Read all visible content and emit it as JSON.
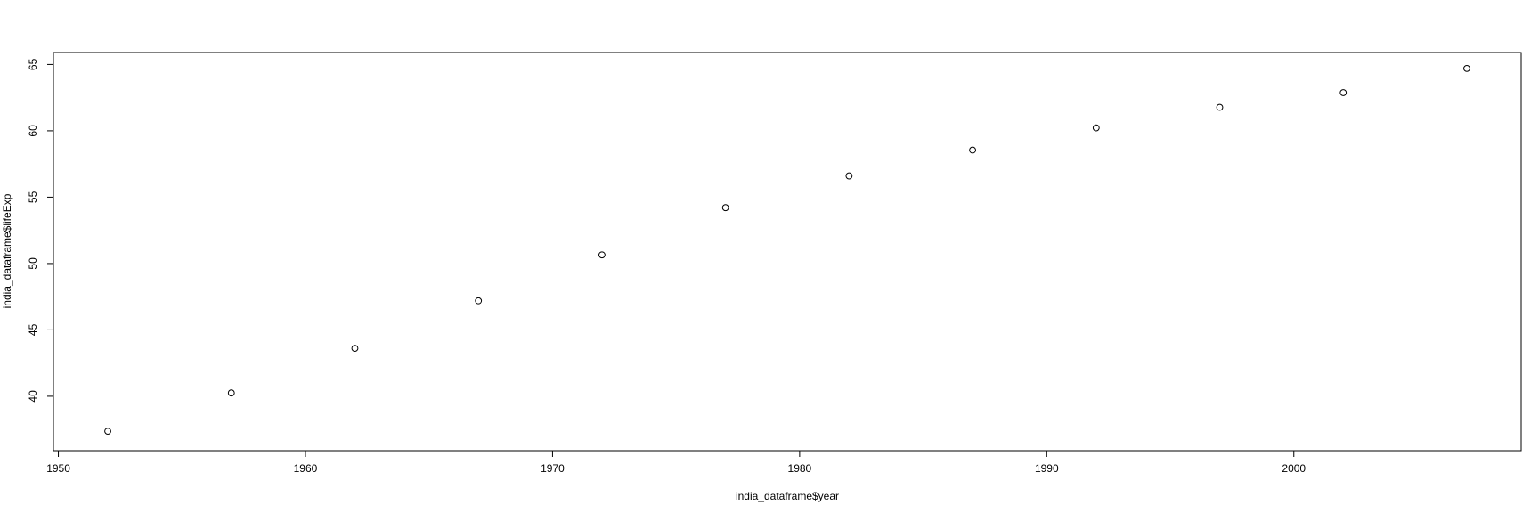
{
  "chart_data": {
    "type": "scatter",
    "xlabel": "india_dataframe$year",
    "ylabel": "india_dataframe$lifeExp",
    "xlim": [
      1949.8,
      2009.2
    ],
    "ylim": [
      35.9,
      65.9
    ],
    "xticks": [
      1950,
      1960,
      1970,
      1980,
      1990,
      2000
    ],
    "yticks": [
      40,
      45,
      50,
      55,
      60,
      65
    ],
    "marker": "open-circle",
    "color": "#000000",
    "grid": false,
    "series": [
      {
        "x": [
          1952,
          1957,
          1962,
          1967,
          1972,
          1977,
          1982,
          1987,
          1992,
          1997,
          2002,
          2007
        ],
        "y": [
          37.37,
          40.25,
          43.61,
          47.19,
          50.65,
          54.21,
          56.6,
          58.55,
          60.22,
          61.77,
          62.88,
          64.7
        ]
      }
    ]
  }
}
